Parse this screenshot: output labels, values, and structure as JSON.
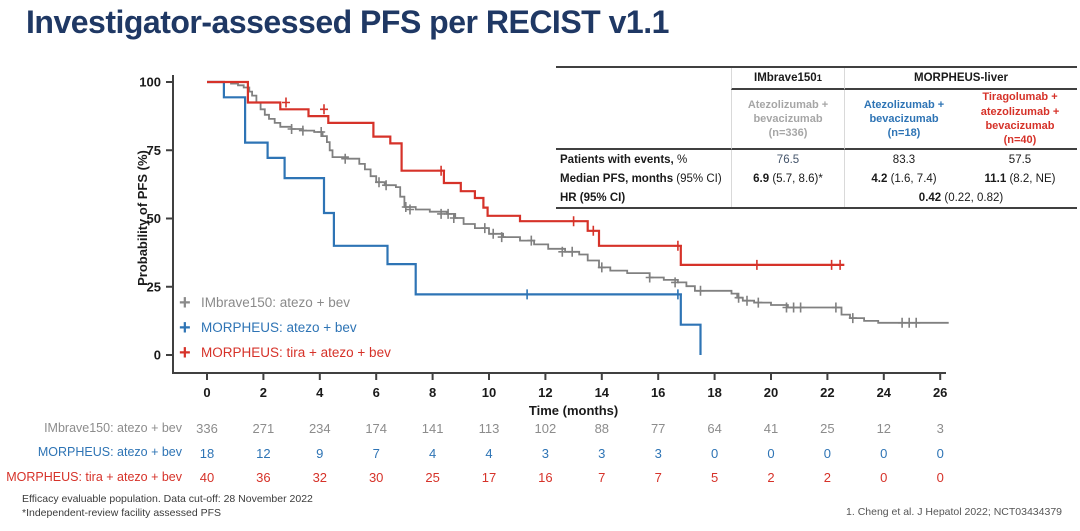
{
  "title": "Investigator-assessed PFS per RECIST v1.1",
  "colors": {
    "title_navy": "#1f3864",
    "gray_arm": "#808080",
    "gray_light": "#a6a6a6",
    "blue_arm": "#2e74b5",
    "red_arm": "#d63229",
    "axis": "#404040",
    "slate_value": "#44546a"
  },
  "chart_data": {
    "type": "line",
    "subtype": "kaplan-meier-step",
    "title": "",
    "xlabel": "Time (months)",
    "ylabel": "Probability  of PFS (%)",
    "xlim": [
      0,
      26
    ],
    "ylim": [
      0,
      100
    ],
    "xticks": [
      0,
      2,
      4,
      6,
      8,
      10,
      12,
      14,
      16,
      18,
      20,
      22,
      24,
      26
    ],
    "yticks": [
      0,
      25,
      50,
      75,
      100
    ],
    "grid": false,
    "legend_position": "inside-lower-left",
    "axis_color": "#404040",
    "series": [
      {
        "name": "IMbrave150: atezo + bev",
        "color": "#808080",
        "width": 1.8,
        "steps": [
          [
            0,
            100
          ],
          [
            0.85,
            99.4
          ],
          [
            1.1,
            98.8
          ],
          [
            1.3,
            98
          ],
          [
            1.5,
            96.5
          ],
          [
            1.6,
            95
          ],
          [
            1.75,
            92.5
          ],
          [
            1.9,
            90
          ],
          [
            2.05,
            88
          ],
          [
            2.2,
            86.5
          ],
          [
            2.4,
            85
          ],
          [
            2.6,
            83.6
          ],
          [
            3,
            82.8
          ],
          [
            3.4,
            82.2
          ],
          [
            3.8,
            81.7
          ],
          [
            4.1,
            80.2
          ],
          [
            4.25,
            78
          ],
          [
            4.35,
            75
          ],
          [
            4.45,
            72.5
          ],
          [
            5,
            71.9
          ],
          [
            5.4,
            70
          ],
          [
            5.6,
            68
          ],
          [
            5.8,
            65.5
          ],
          [
            6,
            63.3
          ],
          [
            6.3,
            62.2
          ],
          [
            6.7,
            61.5
          ],
          [
            6.85,
            58
          ],
          [
            7,
            54.2
          ],
          [
            7.4,
            53.3
          ],
          [
            7.9,
            52.5
          ],
          [
            8.5,
            51.7
          ],
          [
            8.8,
            50.2
          ],
          [
            9.1,
            48
          ],
          [
            9.5,
            46.5
          ],
          [
            10,
            44.4
          ],
          [
            10.5,
            43.2
          ],
          [
            11.1,
            41.9
          ],
          [
            11.6,
            40.5
          ],
          [
            12.1,
            38.9
          ],
          [
            12.7,
            37.8
          ],
          [
            13.2,
            36.8
          ],
          [
            13.5,
            34.6
          ],
          [
            13.9,
            32.1
          ],
          [
            14.3,
            30.9
          ],
          [
            14.9,
            30
          ],
          [
            15.7,
            28.4
          ],
          [
            16.2,
            27.5
          ],
          [
            16.7,
            26.6
          ],
          [
            17,
            25.2
          ],
          [
            17.3,
            23.5
          ],
          [
            18.6,
            22.5
          ],
          [
            18.8,
            21
          ],
          [
            19,
            19.9
          ],
          [
            19.4,
            19.2
          ],
          [
            20,
            18.3
          ],
          [
            20.6,
            17.4
          ],
          [
            22.5,
            14.8
          ],
          [
            22.8,
            13.5
          ],
          [
            23.3,
            12.5
          ],
          [
            23.8,
            11.8
          ],
          [
            26.3,
            11.8
          ]
        ],
        "censors": [
          [
            3,
            82.8
          ],
          [
            3.4,
            82.2
          ],
          [
            4.05,
            81.7
          ],
          [
            4.9,
            71.9
          ],
          [
            6.1,
            63.3
          ],
          [
            6.35,
            62.2
          ],
          [
            7.05,
            54.2
          ],
          [
            7.2,
            53.3
          ],
          [
            8.3,
            51.7
          ],
          [
            8.55,
            51.7
          ],
          [
            8.75,
            50.2
          ],
          [
            9.85,
            46.5
          ],
          [
            10.15,
            44.4
          ],
          [
            10.45,
            43.2
          ],
          [
            11.5,
            41.9
          ],
          [
            12.6,
            37.8
          ],
          [
            12.95,
            37.8
          ],
          [
            14,
            32.1
          ],
          [
            15.7,
            28.4
          ],
          [
            16.6,
            26.6
          ],
          [
            17.5,
            23.5
          ],
          [
            18.85,
            21
          ],
          [
            19.15,
            19.9
          ],
          [
            19.55,
            19.2
          ],
          [
            20.55,
            17.4
          ],
          [
            20.8,
            17.4
          ],
          [
            21.05,
            17.4
          ],
          [
            22.3,
            17.4
          ],
          [
            22.9,
            13.5
          ],
          [
            24.65,
            11.8
          ],
          [
            24.9,
            11.8
          ],
          [
            25.15,
            11.8
          ]
        ]
      },
      {
        "name": "MORPHEUS: atezo + bev",
        "color": "#2e74b5",
        "width": 2.2,
        "steps": [
          [
            0,
            100
          ],
          [
            0.6,
            94.4
          ],
          [
            1.35,
            77.8
          ],
          [
            2.15,
            72.2
          ],
          [
            2.75,
            64.8
          ],
          [
            4.15,
            52
          ],
          [
            4.5,
            40
          ],
          [
            6.4,
            33.3
          ],
          [
            7.4,
            22.2
          ],
          [
            16.8,
            11.1
          ],
          [
            17.5,
            0
          ]
        ],
        "censors": [
          [
            11.35,
            22.2
          ],
          [
            16.7,
            22.2
          ]
        ]
      },
      {
        "name": "MORPHEUS: tira + atezo + bev",
        "color": "#d63229",
        "width": 2.2,
        "steps": [
          [
            0,
            100
          ],
          [
            1.45,
            92.5
          ],
          [
            2.6,
            90
          ],
          [
            3.6,
            87.5
          ],
          [
            4.3,
            85
          ],
          [
            5.9,
            80
          ],
          [
            6.5,
            77.5
          ],
          [
            6.9,
            67.5
          ],
          [
            8.4,
            63
          ],
          [
            9,
            60
          ],
          [
            9.5,
            57.5
          ],
          [
            9.8,
            54
          ],
          [
            9.95,
            51
          ],
          [
            11.1,
            49
          ],
          [
            13.5,
            45.5
          ],
          [
            13.9,
            40
          ],
          [
            16.8,
            33
          ],
          [
            22.6,
            33
          ]
        ],
        "censors": [
          [
            2.8,
            92.5
          ],
          [
            4.15,
            90
          ],
          [
            8.3,
            67.5
          ],
          [
            13,
            49
          ],
          [
            13.7,
            45.5
          ],
          [
            16.7,
            40
          ],
          [
            19.5,
            33
          ],
          [
            22.15,
            33
          ],
          [
            22.45,
            33
          ]
        ]
      }
    ]
  },
  "legend": {
    "items": [
      {
        "label": "IMbrave150: atezo + bev",
        "color": "#8a8a8a"
      },
      {
        "label": "MORPHEUS: atezo + bev",
        "color": "#2e74b5"
      },
      {
        "label": "MORPHEUS: tira + atezo + bev",
        "color": "#d63229"
      }
    ]
  },
  "stats_table": {
    "group_headers": {
      "imbrave": "IMbrave150",
      "imbrave_sup": "1",
      "morpheus": "MORPHEUS-liver"
    },
    "arm_headers": {
      "imbrave": {
        "lines": [
          "Atezolizumab +",
          "bevacizumab",
          "(n=336)"
        ],
        "color": "#a6a6a6"
      },
      "morpheus_ab": {
        "lines": [
          "Atezolizumab +",
          "bevacizumab",
          "(n=18)"
        ],
        "color": "#2e74b5"
      },
      "morpheus_tab": {
        "lines": [
          "Tiragolumab +",
          "atezolizumab +",
          "bevacizumab",
          "(n=40)"
        ],
        "color": "#d63229"
      }
    },
    "rows": {
      "events": {
        "label_bold": "Patients with events,",
        "label_rest": " %",
        "values": [
          "76.5",
          "83.3",
          "57.5"
        ]
      },
      "median": {
        "label_bold": "Median PFS, months",
        "label_rest": " (95% CI)",
        "v1_bold": "6.9",
        "v1_rest": " (5.7, 8.6)*",
        "v2_bold": "4.2",
        "v2_rest": " (1.6, 7.4)",
        "v3_bold": "11.1",
        "v3_rest": " (8.2, NE)"
      },
      "hr": {
        "label_bold": "HR (95% CI)",
        "value_bold": "0.42",
        "value_rest": " (0.22, 0.82)"
      }
    }
  },
  "at_risk": {
    "months": [
      0,
      2,
      4,
      6,
      8,
      10,
      12,
      14,
      16,
      18,
      20,
      22,
      24,
      26
    ],
    "rows": [
      {
        "label": "IMbrave150: atezo + bev",
        "color": "#8c8c8c",
        "values": [
          "336",
          "271",
          "234",
          "174",
          "141",
          "113",
          "102",
          "88",
          "77",
          "64",
          "41",
          "25",
          "12",
          "3"
        ]
      },
      {
        "label": "MORPHEUS: atezo + bev",
        "color": "#2e74b5",
        "values": [
          "18",
          "12",
          "9",
          "7",
          "4",
          "4",
          "3",
          "3",
          "3",
          "0",
          "0",
          "0",
          "0",
          "0"
        ]
      },
      {
        "label": "MORPHEUS: tira + atezo + bev",
        "color": "#d63229",
        "values": [
          "40",
          "36",
          "32",
          "30",
          "25",
          "17",
          "16",
          "7",
          "7",
          "5",
          "2",
          "2",
          "0",
          "0"
        ]
      }
    ]
  },
  "footnotes": {
    "line1": "Efficacy evaluable  population. Data cut-off: 28 November 2022",
    "line2": "*Independent-review facility assessed PFS"
  },
  "reference": "1. Cheng  et al. J Hepatol 2022; NCT03434379"
}
